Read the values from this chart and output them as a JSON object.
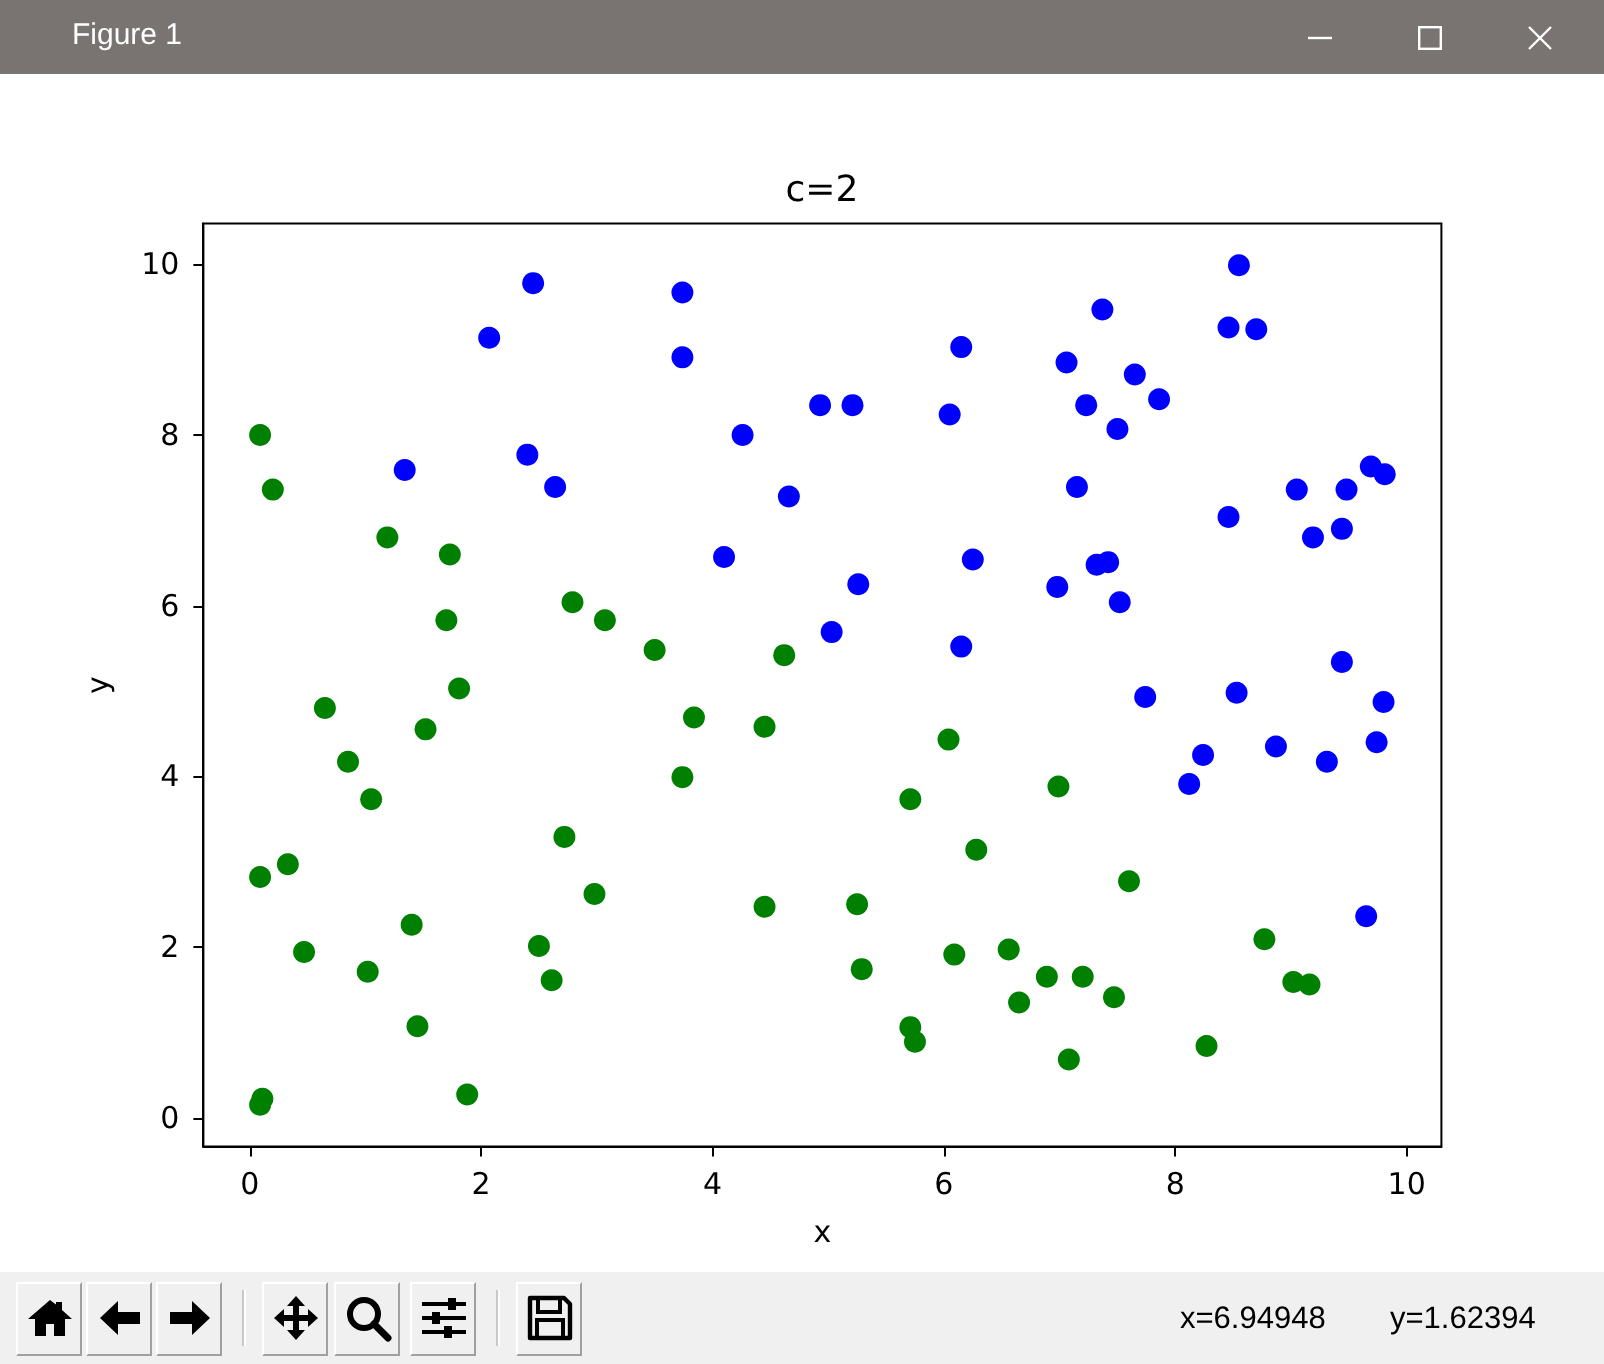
{
  "chart_data": {
    "type": "scatter",
    "title": "c=2",
    "xlabel": "x",
    "ylabel": "y",
    "annotations": [
      "Figure 1",
      "x=6.94948",
      "y=1.62394"
    ],
    "marker": "circle",
    "xlim": [
      -0.4,
      10.3
    ],
    "ylim": [
      -0.34,
      10.48
    ],
    "xticks": [
      0,
      2,
      4,
      6,
      8,
      10
    ],
    "yticks": [
      0,
      2,
      4,
      6,
      8,
      10
    ],
    "series": [
      {
        "color": "#0000ff",
        "x": [
          2.45,
          3.74,
          2.07,
          3.74,
          4.93,
          4.26,
          1.34,
          2.4,
          2.64,
          4.66,
          4.1,
          5.03,
          8.55,
          7.37,
          8.46,
          8.7,
          6.15,
          7.06,
          7.65,
          5.21,
          7.23,
          7.86,
          6.05,
          7.5,
          7.15,
          9.69,
          9.81,
          9.05,
          9.48,
          8.46,
          9.19,
          9.44,
          6.25,
          7.32,
          7.42,
          5.26,
          6.98,
          7.52,
          6.15,
          9.44,
          7.74,
          8.53,
          9.8,
          8.24,
          8.87,
          9.31,
          9.74,
          8.12,
          9.65
        ],
        "values": [
          9.78,
          9.67,
          9.14,
          8.91,
          8.35,
          8.0,
          7.59,
          7.77,
          7.39,
          7.28,
          6.57,
          5.69,
          9.99,
          9.47,
          9.26,
          9.24,
          9.03,
          8.85,
          8.71,
          8.35,
          8.35,
          8.42,
          8.24,
          8.07,
          7.39,
          7.63,
          7.54,
          7.36,
          7.36,
          7.04,
          6.8,
          6.9,
          6.54,
          6.48,
          6.51,
          6.25,
          6.22,
          6.04,
          5.52,
          5.34,
          4.93,
          4.98,
          4.87,
          4.25,
          4.35,
          4.17,
          4.4,
          3.91,
          2.36
        ]
      },
      {
        "color": "#008000",
        "x": [
          0.09,
          0.2,
          1.19,
          1.73,
          2.79,
          1.7,
          3.07,
          3.5,
          4.62,
          1.81,
          0.65,
          1.52,
          3.84,
          4.45,
          0.85,
          3.74,
          1.05,
          2.72,
          0.33,
          0.09,
          2.98,
          4.45,
          1.4,
          2.5,
          0.47,
          1.02,
          2.61,
          1.45,
          1.88,
          0.11,
          0.09,
          6.04,
          5.71,
          6.99,
          6.28,
          7.6,
          5.25,
          5.29,
          6.09,
          6.56,
          8.77,
          6.89,
          7.2,
          6.65,
          7.47,
          9.02,
          9.16,
          5.71,
          5.75,
          7.08,
          8.27
        ],
        "values": [
          8.0,
          7.36,
          6.8,
          6.6,
          6.04,
          5.83,
          5.83,
          5.48,
          5.42,
          5.03,
          4.8,
          4.55,
          4.69,
          4.58,
          4.17,
          3.99,
          3.73,
          3.29,
          2.97,
          2.82,
          2.62,
          2.47,
          2.26,
          2.01,
          1.94,
          1.71,
          1.61,
          1.07,
          0.27,
          0.22,
          0.15,
          4.43,
          3.73,
          3.88,
          3.14,
          2.77,
          2.5,
          1.74,
          1.91,
          1.97,
          2.09,
          1.65,
          1.65,
          1.35,
          1.41,
          1.59,
          1.56,
          1.06,
          0.89,
          0.68,
          0.84
        ]
      }
    ]
  }
}
